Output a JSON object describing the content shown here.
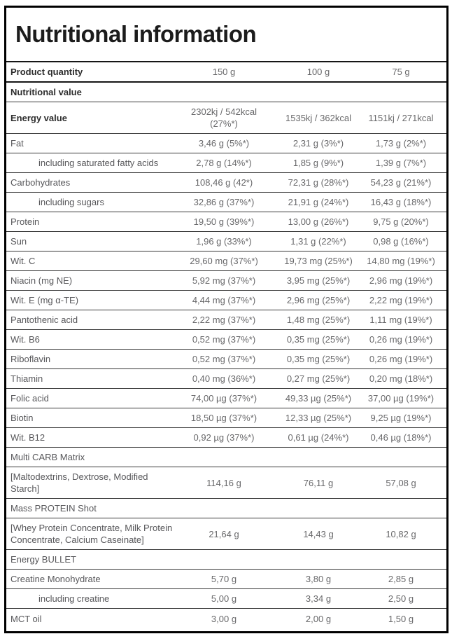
{
  "title": "Nutritional information",
  "table": {
    "header": {
      "label": "Product quantity",
      "values": [
        "150 g",
        "100 g",
        "75 g"
      ]
    },
    "rows": [
      {
        "label": "Nutritional value",
        "style": "bold",
        "values": [
          "",
          "",
          ""
        ]
      },
      {
        "label": "Energy value",
        "style": "bold",
        "values": [
          "2302kj / 542kcal (27%*)",
          "1535kj / 362kcal",
          "1151kj / 271kcal"
        ]
      },
      {
        "label": "Fat",
        "style": "normal",
        "values": [
          "3,46 g (5%*)",
          "2,31 g (3%*)",
          "1,73 g (2%*)"
        ]
      },
      {
        "label": "including saturated fatty acids",
        "style": "indent",
        "values": [
          "2,78 g (14%*)",
          "1,85 g (9%*)",
          "1,39 g (7%*)"
        ]
      },
      {
        "label": "Carbohydrates",
        "style": "normal",
        "values": [
          "108,46 g (42*)",
          "72,31 g (28%*)",
          "54,23 g (21%*)"
        ]
      },
      {
        "label": "including sugars",
        "style": "indent",
        "values": [
          "32,86 g (37%*)",
          "21,91 g (24%*)",
          "16,43 g (18%*)"
        ]
      },
      {
        "label": "Protein",
        "style": "normal",
        "values": [
          "19,50 g (39%*)",
          "13,00 g (26%*)",
          "9,75 g (20%*)"
        ]
      },
      {
        "label": "Sun",
        "style": "normal",
        "values": [
          "1,96 g (33%*)",
          "1,31 g (22%*)",
          "0,98 g (16%*)"
        ]
      },
      {
        "label": "Wit. C",
        "style": "normal",
        "values": [
          "29,60 mg (37%*)",
          "19,73 mg (25%*)",
          "14,80 mg (19%*)"
        ]
      },
      {
        "label": "Niacin (mg NE)",
        "style": "normal",
        "values": [
          "5,92 mg (37%*)",
          "3,95 mg (25%*)",
          "2,96 mg (19%*)"
        ]
      },
      {
        "label": "Wit. E (mg α-TE)",
        "style": "normal",
        "values": [
          "4,44 mg (37%*)",
          "2,96 mg (25%*)",
          "2,22 mg (19%*)"
        ]
      },
      {
        "label": "Pantothenic acid",
        "style": "normal",
        "values": [
          "2,22 mg (37%*)",
          "1,48 mg (25%*)",
          "1,11 mg (19%*)"
        ]
      },
      {
        "label": "Wit. B6",
        "style": "normal",
        "values": [
          "0,52 mg (37%*)",
          "0,35 mg (25%*)",
          "0,26 mg (19%*)"
        ]
      },
      {
        "label": "Riboflavin",
        "style": "normal",
        "values": [
          "0,52 mg (37%*)",
          "0,35 mg (25%*)",
          "0,26 mg (19%*)"
        ]
      },
      {
        "label": "Thiamin",
        "style": "normal",
        "values": [
          "0,40 mg (36%*)",
          "0,27 mg (25%*)",
          "0,20 mg (18%*)"
        ]
      },
      {
        "label": "Folic acid",
        "style": "normal",
        "values": [
          "74,00 µg (37%*)",
          "49,33 µg (25%*)",
          "37,00 µg (19%*)"
        ]
      },
      {
        "label": "Biotin",
        "style": "normal",
        "values": [
          "18,50 µg (37%*)",
          "12,33 µg (25%*)",
          "9,25 µg (19%*)"
        ]
      },
      {
        "label": "Wit. B12",
        "style": "normal",
        "values": [
          "0,92 µg (37%*)",
          "0,61 µg (24%*)",
          "0,46 µg (18%*)"
        ]
      },
      {
        "label": "Multi CARB Matrix",
        "style": "normal",
        "values": [
          "",
          "",
          ""
        ]
      },
      {
        "label": "[Maltodextrins, Dextrose, Modified Starch]",
        "style": "normal",
        "values": [
          "114,16 g",
          "76,11 g",
          "57,08 g"
        ]
      },
      {
        "label": "Mass PROTEIN Shot",
        "style": "normal",
        "values": [
          "",
          "",
          ""
        ]
      },
      {
        "label": "[Whey Protein Concentrate, Milk Protein Concentrate, Calcium Caseinate]",
        "style": "normal",
        "values": [
          "21,64 g",
          "14,43 g",
          "10,82 g"
        ]
      },
      {
        "label": "Energy BULLET",
        "style": "normal",
        "values": [
          "",
          "",
          ""
        ]
      },
      {
        "label": "Creatine Monohydrate",
        "style": "normal",
        "values": [
          "5,70 g",
          "3,80 g",
          "2,85 g"
        ]
      },
      {
        "label": "including creatine",
        "style": "indent",
        "values": [
          "5,00 g",
          "3,34 g",
          "2,50 g"
        ]
      },
      {
        "label": "MCT oil",
        "style": "normal",
        "values": [
          "3,00 g",
          "2,00 g",
          "1,50 g"
        ]
      }
    ]
  }
}
